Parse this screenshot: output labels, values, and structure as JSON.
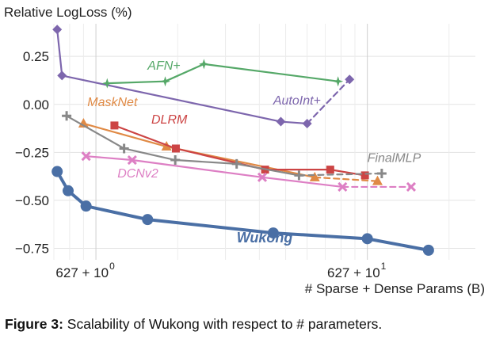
{
  "chart_data": {
    "type": "line",
    "title": "",
    "ylabel": "Relative LogLoss (%)",
    "xlabel": "# Sparse + Dense Params (B)",
    "x_scale": "log",
    "x_ticks": [
      {
        "value": 1,
        "label": "627 + 10"
      },
      {
        "value": 10,
        "label": "627 + 10"
      }
    ],
    "x_tick_exponents": [
      "0",
      "1"
    ],
    "xlim": [
      0.7,
      25
    ],
    "ylim": [
      -0.81,
      0.42
    ],
    "y_ticks": [
      {
        "value": 0.25,
        "label": "0.25"
      },
      {
        "value": 0.0,
        "label": "0.00"
      },
      {
        "value": -0.25,
        "label": "−0.25"
      },
      {
        "value": -0.5,
        "label": "−0.50"
      },
      {
        "value": -0.75,
        "label": "−0.75"
      }
    ],
    "grid": true,
    "legend": "none",
    "series": [
      {
        "name": "Wukong",
        "color": "#4a6fa5",
        "marker": "circle",
        "bold": true,
        "label_pos": [
          3.3,
          -0.72
        ],
        "x": [
          0.72,
          0.79,
          0.92,
          1.55,
          4.5,
          10.0,
          16.8
        ],
        "y": [
          -0.35,
          -0.45,
          -0.53,
          -0.6,
          -0.67,
          -0.7,
          -0.76
        ],
        "dashed_from": null
      },
      {
        "name": "AutoInt+",
        "color": "#7d66ad",
        "marker": "diamond",
        "label_pos": [
          4.5,
          0.0
        ],
        "x": [
          0.72,
          0.75,
          4.8,
          6.0,
          8.6
        ],
        "y": [
          0.39,
          0.15,
          -0.09,
          -0.1,
          0.13
        ],
        "dashed_from": 3
      },
      {
        "name": "AFN+",
        "color": "#55a868",
        "marker": "star",
        "label_pos": [
          1.55,
          0.18
        ],
        "x": [
          1.1,
          1.8,
          2.5,
          7.8
        ],
        "y": [
          0.11,
          0.12,
          0.21,
          0.12
        ],
        "dashed_from": null
      },
      {
        "name": "MaskNet",
        "color": "#e08a45",
        "marker": "triangle",
        "label_pos": [
          0.93,
          -0.01
        ],
        "x": [
          0.9,
          1.82,
          6.4,
          10.9
        ],
        "y": [
          -0.1,
          -0.22,
          -0.38,
          -0.4
        ],
        "dashed_from": 2
      },
      {
        "name": "DLRM",
        "color": "#cc4444",
        "marker": "square",
        "label_pos": [
          1.6,
          -0.1
        ],
        "x": [
          1.17,
          1.97,
          4.2,
          7.3,
          9.8
        ],
        "y": [
          -0.11,
          -0.23,
          -0.34,
          -0.34,
          -0.37
        ],
        "dashed_from": null
      },
      {
        "name": "FinalMLP",
        "color": "#888888",
        "marker": "plus",
        "label_pos": [
          10.0,
          -0.3
        ],
        "x": [
          0.78,
          1.27,
          1.96,
          3.3,
          5.6,
          11.3
        ],
        "y": [
          -0.06,
          -0.23,
          -0.29,
          -0.31,
          -0.37,
          -0.36
        ],
        "dashed_from": 4
      },
      {
        "name": "DCNv2",
        "color": "#dd7fc4",
        "marker": "x",
        "label_pos": [
          1.2,
          -0.38
        ],
        "x": [
          0.92,
          1.36,
          4.1,
          8.1,
          14.5
        ],
        "y": [
          -0.27,
          -0.29,
          -0.38,
          -0.43,
          -0.43
        ],
        "dashed_from": 3
      }
    ]
  },
  "caption": {
    "label": "Figure 3:",
    "text": " Scalability of Wukong with respect to # parameters."
  }
}
